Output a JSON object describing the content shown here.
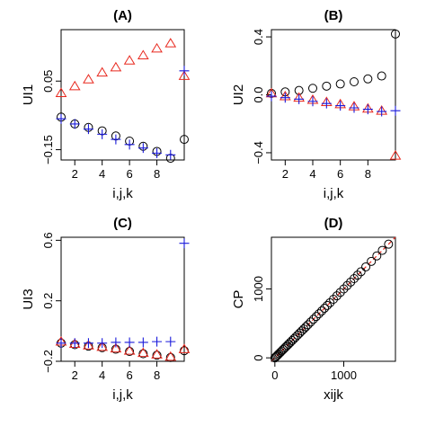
{
  "chart_data": [
    {
      "type": "scatter",
      "title": "(A)",
      "xlabel": "i,j,k",
      "ylabel": "UI1",
      "xlim": [
        1,
        10
      ],
      "ylim": [
        -0.18,
        0.2
      ],
      "xticks": [
        2,
        4,
        6,
        8
      ],
      "yticks": [
        -0.15,
        0.05
      ],
      "ytick_labels": [
        "−0.15",
        "0.05"
      ],
      "x": [
        1,
        2,
        3,
        4,
        5,
        6,
        7,
        8,
        9,
        10
      ],
      "series": [
        {
          "marker": "circle",
          "color": "#000000",
          "values": [
            -0.055,
            -0.075,
            -0.085,
            -0.095,
            -0.11,
            -0.125,
            -0.14,
            -0.155,
            -0.175,
            -0.12
          ]
        },
        {
          "marker": "triangle",
          "color": "#e8281e",
          "values": [
            0.015,
            0.035,
            0.055,
            0.075,
            0.09,
            0.11,
            0.125,
            0.145,
            0.16,
            0.065
          ]
        },
        {
          "marker": "plus",
          "color": "#1a1adb",
          "values": [
            -0.06,
            -0.075,
            -0.09,
            -0.105,
            -0.12,
            -0.135,
            -0.145,
            -0.16,
            -0.165,
            0.08
          ]
        }
      ]
    },
    {
      "type": "scatter",
      "title": "(B)",
      "xlabel": "i,j,k",
      "ylabel": "UI2",
      "xlim": [
        1,
        10
      ],
      "ylim": [
        -0.45,
        0.45
      ],
      "xticks": [
        2,
        4,
        6,
        8
      ],
      "yticks": [
        -0.4,
        0.0,
        0.4
      ],
      "ytick_labels": [
        "−0.4",
        "0.0",
        "0.4"
      ],
      "x": [
        1,
        2,
        3,
        4,
        5,
        6,
        7,
        8,
        9,
        10
      ],
      "series": [
        {
          "marker": "circle",
          "color": "#000000",
          "values": [
            0.01,
            0.02,
            0.03,
            0.045,
            0.06,
            0.075,
            0.09,
            0.11,
            0.13,
            0.42
          ]
        },
        {
          "marker": "triangle",
          "color": "#e8281e",
          "values": [
            0.01,
            -0.01,
            -0.02,
            -0.035,
            -0.05,
            -0.065,
            -0.08,
            -0.095,
            -0.11,
            -0.42
          ]
        },
        {
          "marker": "plus",
          "color": "#1a1adb",
          "values": [
            -0.01,
            -0.02,
            -0.03,
            -0.045,
            -0.06,
            -0.075,
            -0.09,
            -0.1,
            -0.115,
            -0.11
          ]
        }
      ]
    },
    {
      "type": "scatter",
      "title": "(C)",
      "xlabel": "i,j,k",
      "ylabel": "UI3",
      "xlim": [
        1,
        10
      ],
      "ylim": [
        -0.2,
        0.62
      ],
      "xticks": [
        2,
        4,
        6,
        8
      ],
      "yticks": [
        -0.2,
        0.2,
        0.6
      ],
      "ytick_labels": [
        "−0.2",
        "0.2",
        "0.6"
      ],
      "x": [
        1,
        2,
        3,
        4,
        5,
        6,
        7,
        8,
        9,
        10
      ],
      "series": [
        {
          "marker": "circle",
          "color": "#000000",
          "values": [
            -0.08,
            -0.09,
            -0.1,
            -0.11,
            -0.12,
            -0.135,
            -0.15,
            -0.16,
            -0.175,
            -0.13
          ]
        },
        {
          "marker": "triangle",
          "color": "#e8281e",
          "values": [
            -0.07,
            -0.085,
            -0.095,
            -0.105,
            -0.115,
            -0.13,
            -0.145,
            -0.155,
            -0.17,
            -0.12
          ]
        },
        {
          "marker": "plus",
          "color": "#1a1adb",
          "values": [
            -0.08,
            -0.08,
            -0.08,
            -0.08,
            -0.075,
            -0.075,
            -0.075,
            -0.07,
            -0.07,
            0.58
          ]
        }
      ]
    },
    {
      "type": "scatter",
      "title": "(D)",
      "xlabel": "xijk",
      "ylabel": "CP",
      "xlim": [
        -50,
        1750
      ],
      "ylim": [
        -50,
        1750
      ],
      "xticks": [
        0,
        1000
      ],
      "yticks": [
        0,
        1000
      ],
      "ytick_labels": [
        "0",
        "1000"
      ],
      "reference_line": {
        "style": "dashed",
        "color": "#e8281e",
        "slope": 1,
        "intercept": 0
      },
      "series": [
        {
          "marker": "circle",
          "color": "#000000",
          "x": [
            0,
            15,
            30,
            45,
            60,
            80,
            100,
            120,
            140,
            160,
            180,
            200,
            225,
            250,
            275,
            300,
            330,
            360,
            390,
            420,
            450,
            480,
            520,
            560,
            600,
            640,
            680,
            720,
            760,
            800,
            850,
            900,
            950,
            1000,
            1050,
            1100,
            1150,
            1200,
            1250,
            1320,
            1400,
            1480,
            1560,
            1650
          ],
          "values": [
            0,
            15,
            30,
            45,
            60,
            80,
            100,
            120,
            140,
            160,
            180,
            200,
            225,
            250,
            275,
            300,
            330,
            360,
            390,
            420,
            450,
            480,
            520,
            560,
            600,
            640,
            680,
            720,
            760,
            800,
            850,
            900,
            950,
            1000,
            1050,
            1100,
            1150,
            1200,
            1250,
            1320,
            1400,
            1480,
            1560,
            1650
          ]
        }
      ]
    }
  ]
}
